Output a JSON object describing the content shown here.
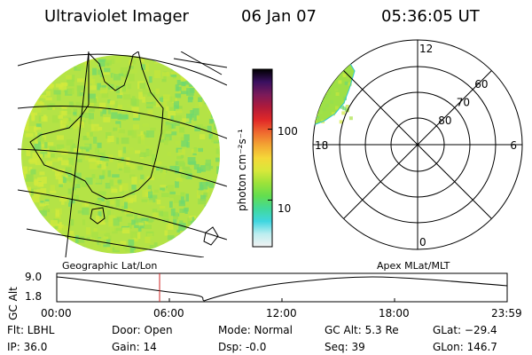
{
  "header": {
    "instrument": "Ultraviolet Imager",
    "date": "06 Jan 07",
    "time": "05:36:05 UT"
  },
  "colorbar": {
    "unit_label": "photon cm⁻²s⁻¹",
    "ticks": [
      {
        "label": "100",
        "value": 100
      },
      {
        "label": "10",
        "value": 10
      }
    ],
    "stops": [
      "#f2f2f2",
      "#bdeef0",
      "#3fd6e0",
      "#41d99a",
      "#63de4f",
      "#9be23a",
      "#d8e83a",
      "#f5d838",
      "#f3a633",
      "#ef6a2f",
      "#e02828",
      "#b01a3a",
      "#7a1a5a",
      "#3a1060",
      "#000000"
    ]
  },
  "map": {
    "projection_label": "Geographic Lat/Lon",
    "image_colors": [
      "#b7e443",
      "#a8e145",
      "#c4e53c",
      "#95de4f",
      "#d3e93c",
      "#86dc5e",
      "#6fd86f",
      "#9ee24a"
    ]
  },
  "polar": {
    "projection_label": "Apex MLat/MLT",
    "mlt_labels": [
      {
        "label": "12",
        "mlt": 12
      },
      {
        "label": "6",
        "mlt": 6
      },
      {
        "label": "18",
        "mlt": 18
      },
      {
        "label": "0",
        "mlt": 0
      }
    ],
    "mlat_labels": [
      {
        "label": "60",
        "mlat": 60
      },
      {
        "label": "70",
        "mlat": 70
      },
      {
        "label": "80",
        "mlat": 80
      }
    ]
  },
  "altitude_plot": {
    "ylabel": "GC Alt",
    "ytick_top": "9.0",
    "ytick_bottom": "1.8",
    "xticks": [
      "00:00",
      "06:00",
      "12:00",
      "18:00",
      "23:59"
    ],
    "marker_color": "#cc2222"
  },
  "info": {
    "filter": "Flt: LBHL",
    "ip": "IP: 36.0",
    "door": "Door: Open",
    "gain": "Gain: 14",
    "mode": "Mode: Normal",
    "dsp": "Dsp:    -0.0",
    "gc_alt": "GC Alt: 5.3 Re",
    "seq": "Seq: 39",
    "glat": "GLat: −29.4",
    "glon": "GLon: 146.7"
  }
}
